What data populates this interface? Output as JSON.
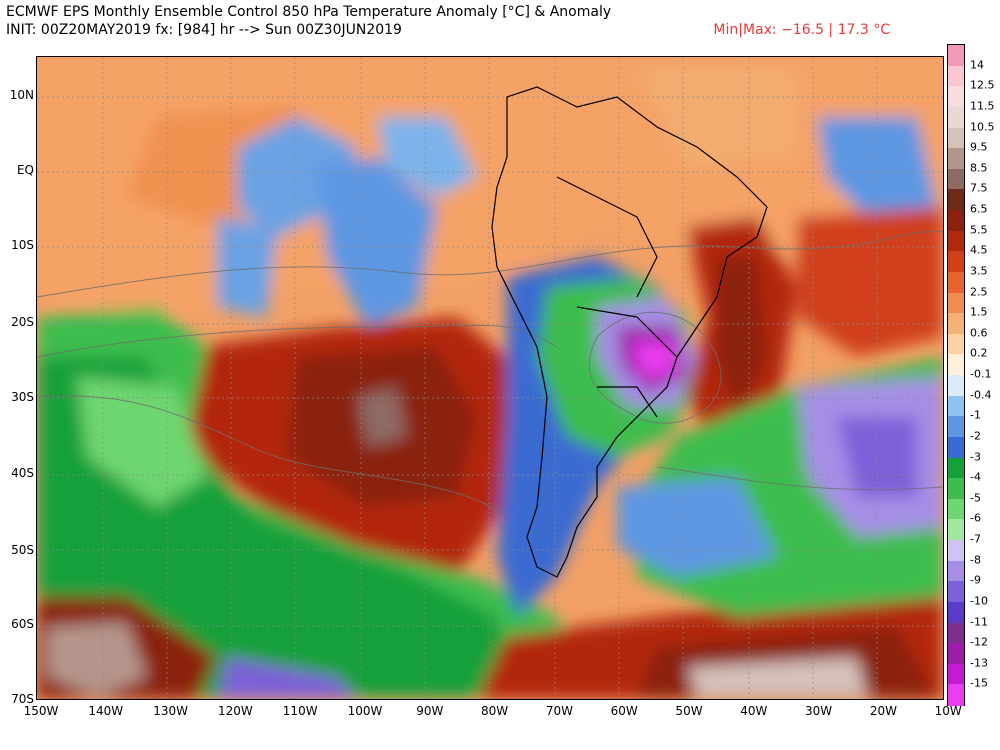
{
  "header": {
    "title": "ECMWF EPS Monthly Ensemble Control 850 hPa Temperature Anomaly [°C] & Anomaly",
    "init_line": "INIT: 00Z20MAY2019 fx: [984] hr --> Sun 00Z30JUN2019",
    "minmax": "Min|Max: −16.5 | 17.3 °C"
  },
  "lat_labels": [
    "10N",
    "EQ",
    "10S",
    "20S",
    "30S",
    "40S",
    "50S",
    "60S",
    "70S"
  ],
  "lon_labels": [
    "150W",
    "140W",
    "130W",
    "120W",
    "110W",
    "100W",
    "90W",
    "80W",
    "70W",
    "60W",
    "50W",
    "40W",
    "30W",
    "20W",
    "10W"
  ],
  "colorbar": {
    "labels": [
      "14",
      "12.5",
      "11.5",
      "10.5",
      "9.5",
      "8.5",
      "7.5",
      "6.5",
      "5.5",
      "4.5",
      "3.5",
      "2.5",
      "1.5",
      "0.6",
      "0.2",
      "-0.1",
      "-0.4",
      "-1",
      "-2",
      "-3",
      "-4",
      "-5",
      "-6",
      "-7",
      "-8",
      "-9",
      "-10",
      "-11",
      "-12",
      "-13",
      "-15"
    ],
    "colors": [
      "#f39ab7",
      "#f8c7cf",
      "#f7dede",
      "#e8d9d5",
      "#d6c1bb",
      "#b5958b",
      "#8d6b63",
      "#6e2a17",
      "#8b2210",
      "#b2280f",
      "#d0401a",
      "#e8632d",
      "#f08c4f",
      "#f5b277",
      "#fad2a3",
      "#fdf1d9",
      "#d8ecfa",
      "#8ec3ef",
      "#5d97e2",
      "#3a6bd1",
      "#16a03a",
      "#3cbd4e",
      "#6ed66f",
      "#a0e89c",
      "#cfc4f1",
      "#a68ee6",
      "#7c61d8",
      "#5a3cc8",
      "#7d2f8f",
      "#9b1fa8",
      "#c21bd2",
      "#ea3ef0"
    ]
  }
}
